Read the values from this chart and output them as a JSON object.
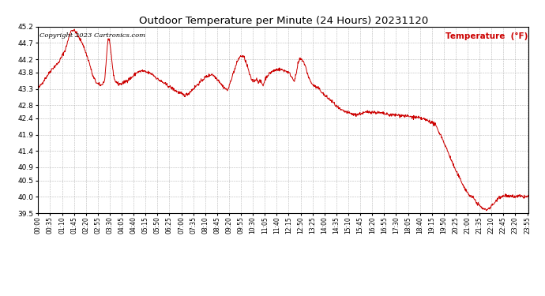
{
  "title": "Outdoor Temperature per Minute (24 Hours) 20231120",
  "copyright_text": "Copyright 2023 Cartronics.com",
  "legend_label": "Temperature  (°F)",
  "line_color": "#cc0000",
  "copyright_color": "#000000",
  "legend_color": "#cc0000",
  "background_color": "#ffffff",
  "grid_color": "#888888",
  "ylim": [
    39.5,
    45.2
  ],
  "yticks": [
    39.5,
    40.0,
    40.5,
    40.9,
    41.4,
    41.9,
    42.4,
    42.8,
    43.3,
    43.8,
    44.2,
    44.7,
    45.2
  ],
  "figsize": [
    6.9,
    3.75
  ],
  "dpi": 100,
  "tick_step_minutes": 35
}
